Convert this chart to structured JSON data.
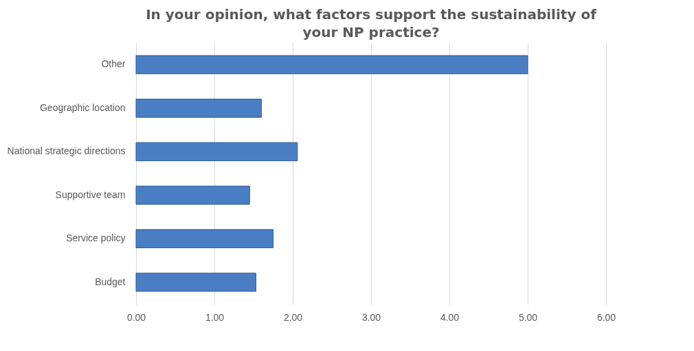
{
  "chart_data": {
    "type": "bar",
    "orientation": "horizontal",
    "title": "In your opinion, what factors support the sustainability of your NP practice?",
    "categories": [
      "Other",
      "Geographic location",
      "National strategic directions",
      "Supportive team",
      "Service policy",
      "Budget"
    ],
    "values": [
      5.0,
      1.6,
      2.06,
      1.45,
      1.75,
      1.53
    ],
    "color": "#4a7ec4",
    "xlim": [
      0,
      6
    ],
    "xticks": [
      {
        "value": 0,
        "label": "0.00"
      },
      {
        "value": 1,
        "label": "1.00"
      },
      {
        "value": 2,
        "label": "2.00"
      },
      {
        "value": 3,
        "label": "3.00"
      },
      {
        "value": 4,
        "label": "4.00"
      },
      {
        "value": 5,
        "label": "5.00"
      },
      {
        "value": 6,
        "label": "6.00"
      }
    ],
    "grid": "x"
  }
}
